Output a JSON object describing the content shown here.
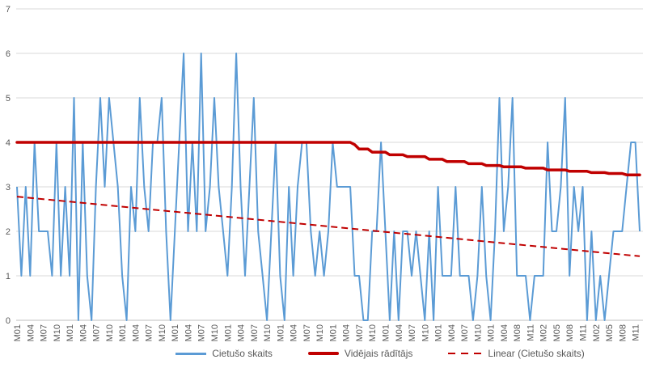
{
  "chart_data": {
    "type": "line",
    "grid": "horizontal",
    "legend_position": "bottom",
    "background_color": "#FFFFFF",
    "grid_color": "#D9D9D9",
    "axis_color": "#BFBFBF",
    "tick_text_color": "#595959",
    "ylim": [
      0,
      7
    ],
    "y_ticks": [
      0,
      1,
      2,
      3,
      4,
      5,
      6,
      7
    ],
    "x_labels_every": 3,
    "x_tick_labels": [
      "M01",
      "M04",
      "M07",
      "M10",
      "M01",
      "M04",
      "M07",
      "M10",
      "M01",
      "M04",
      "M07",
      "M10",
      "M01",
      "M04",
      "M07",
      "M10",
      "M01",
      "M04",
      "M07",
      "M10",
      "M01",
      "M04",
      "M07",
      "M10",
      "M01",
      "M04",
      "M07",
      "M10",
      "M01",
      "M04",
      "M07",
      "M10",
      "M01",
      "M04",
      "M07",
      "M10",
      "M01",
      "M04",
      "M08",
      "M11",
      "M02",
      "M05",
      "M08",
      "M11",
      "M02",
      "M05",
      "M08",
      "M11"
    ],
    "series": [
      {
        "name": "Cietušo skaits",
        "color": "#5B9BD5",
        "style": "solid",
        "values": [
          3,
          1,
          3,
          1,
          4,
          2,
          2,
          2,
          1,
          4,
          1,
          3,
          1,
          5,
          0,
          4,
          1,
          0,
          3,
          5,
          3,
          5,
          4,
          3,
          1,
          0,
          3,
          2,
          5,
          3,
          2,
          4,
          4,
          5,
          2,
          0,
          2,
          4,
          6,
          2,
          4,
          2,
          6,
          2,
          3,
          5,
          3,
          2,
          1,
          3,
          6,
          3,
          1,
          3,
          5,
          2,
          1,
          0,
          2,
          4,
          1,
          0,
          3,
          1,
          3,
          4,
          4,
          2,
          1,
          2,
          1,
          2,
          4,
          3,
          3,
          3,
          3,
          1,
          1,
          0,
          0,
          2,
          2,
          4,
          2,
          0,
          2,
          0,
          2,
          2,
          1,
          2,
          1,
          0,
          2,
          0,
          3,
          1,
          1,
          1,
          3,
          1,
          1,
          1,
          0,
          1,
          3,
          1,
          0,
          2,
          5,
          2,
          3,
          5,
          1,
          1,
          1,
          0,
          1,
          1,
          1,
          4,
          2,
          2,
          3,
          5,
          1,
          3,
          2,
          3,
          0,
          2,
          0,
          1,
          0,
          1,
          2,
          2,
          2,
          3,
          4,
          4,
          2
        ]
      },
      {
        "name": "Vidējais rādītājs",
        "color": "#C00000",
        "style": "solid",
        "values": [
          4,
          4,
          4,
          4,
          4,
          4,
          4,
          4,
          4,
          4,
          4,
          4,
          4,
          4,
          4,
          4,
          4,
          4,
          4,
          4,
          4,
          4,
          4,
          4,
          4,
          4,
          4,
          4,
          4,
          4,
          4,
          4,
          4,
          4,
          4,
          4,
          4,
          4,
          4,
          4,
          4,
          4,
          4,
          4,
          4,
          4,
          4,
          4,
          4,
          4,
          4,
          4,
          4,
          4,
          4,
          4,
          4,
          4,
          4,
          4,
          4,
          4,
          4,
          4,
          4,
          4,
          4,
          4,
          4,
          4,
          4,
          4,
          4,
          4,
          4,
          4,
          4,
          3.95,
          3.85,
          3.85,
          3.85,
          3.78,
          3.78,
          3.78,
          3.78,
          3.72,
          3.72,
          3.72,
          3.72,
          3.68,
          3.68,
          3.68,
          3.68,
          3.68,
          3.62,
          3.62,
          3.62,
          3.62,
          3.57,
          3.57,
          3.57,
          3.57,
          3.57,
          3.52,
          3.52,
          3.52,
          3.52,
          3.48,
          3.48,
          3.48,
          3.48,
          3.45,
          3.45,
          3.45,
          3.45,
          3.45,
          3.42,
          3.42,
          3.42,
          3.42,
          3.42,
          3.38,
          3.38,
          3.38,
          3.38,
          3.38,
          3.35,
          3.35,
          3.35,
          3.35,
          3.35,
          3.32,
          3.32,
          3.32,
          3.32,
          3.3,
          3.3,
          3.3,
          3.3,
          3.27,
          3.27,
          3.27,
          3.27
        ]
      },
      {
        "name": "Linear (Cietušo skaits)",
        "color": "#C00000",
        "style": "dashed",
        "trend": {
          "start": 2.78,
          "end": 1.44
        }
      }
    ]
  }
}
